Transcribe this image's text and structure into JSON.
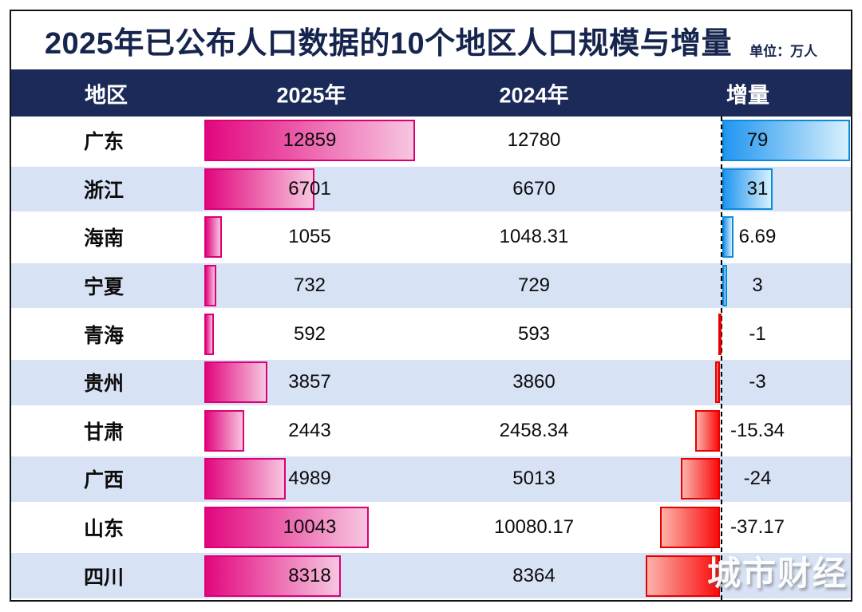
{
  "title": "2025年已公布人口数据的10个地区人口规模与增量",
  "unit_label": "单位：万人",
  "watermark": "城市财经",
  "table": {
    "headers": {
      "region": "地区",
      "y2025": "2025年",
      "y2024": "2024年",
      "increment": "增量"
    }
  },
  "colors": {
    "navy": "#1B2A58",
    "title_text": "#16254E",
    "row_alt": "#D8E2F5",
    "pink_bar_start": "#E2077E",
    "pink_bar_end": "#F7C6E0",
    "pink_bar_border": "#DB0076",
    "blue_bar_start": "#2196F0",
    "blue_bar_end": "#D9F0FD",
    "blue_bar_border": "#0D8BDB",
    "red_bar_start": "#FBB3AB",
    "red_bar_end": "#FA0C0C",
    "red_bar_border": "#E80000"
  },
  "chart_data": {
    "type": "bar",
    "title": "2025年已公布人口数据的10个地区人口规模与增量",
    "unit": "万人",
    "categories": [
      "广东",
      "浙江",
      "海南",
      "宁夏",
      "青海",
      "贵州",
      "甘肃",
      "广西",
      "山东",
      "四川"
    ],
    "series": [
      {
        "name": "2025年",
        "values": [
          12859,
          6701,
          1055,
          732,
          592,
          3857,
          2443,
          4989,
          10043,
          8318
        ]
      },
      {
        "name": "2024年",
        "values": [
          12780,
          6670,
          1048.31,
          729,
          593,
          3860,
          2458.34,
          5013,
          10080.17,
          8364
        ]
      },
      {
        "name": "增量",
        "values": [
          79,
          31,
          6.69,
          3,
          -1,
          -3,
          -15.34,
          -24,
          -37.17,
          -46
        ]
      }
    ],
    "notes": "增量 bars: blue = positive (right of dashed zero line), red = negative (left of dashed zero line); 四川 increment label hidden behind watermark, bar length estimated",
    "legend": "none",
    "grid": "off"
  },
  "rows": [
    {
      "region": "广东",
      "v2025": "12859",
      "v2024": "12780",
      "inc_label": "79",
      "p2025": 12859,
      "inc": 79
    },
    {
      "region": "浙江",
      "v2025": "6701",
      "v2024": "6670",
      "inc_label": "31",
      "p2025": 6701,
      "inc": 31
    },
    {
      "region": "海南",
      "v2025": "1055",
      "v2024": "1048.31",
      "inc_label": "6.69",
      "p2025": 1055,
      "inc": 6.69
    },
    {
      "region": "宁夏",
      "v2025": "732",
      "v2024": "729",
      "inc_label": "3",
      "p2025": 732,
      "inc": 3
    },
    {
      "region": "青海",
      "v2025": "592",
      "v2024": "593",
      "inc_label": "-1",
      "p2025": 592,
      "inc": -1
    },
    {
      "region": "贵州",
      "v2025": "3857",
      "v2024": "3860",
      "inc_label": "-3",
      "p2025": 3857,
      "inc": -3
    },
    {
      "region": "甘肃",
      "v2025": "2443",
      "v2024": "2458.34",
      "inc_label": "-15.34",
      "p2025": 2443,
      "inc": -15.34
    },
    {
      "region": "广西",
      "v2025": "4989",
      "v2024": "5013",
      "inc_label": "-24",
      "p2025": 4989,
      "inc": -24
    },
    {
      "region": "山东",
      "v2025": "10043",
      "v2024": "10080.17",
      "inc_label": "-37.17",
      "p2025": 10043,
      "inc": -37.17
    },
    {
      "region": "四川",
      "v2025": "8318",
      "v2024": "8364",
      "inc_label": "",
      "p2025": 8318,
      "inc": -46
    }
  ]
}
